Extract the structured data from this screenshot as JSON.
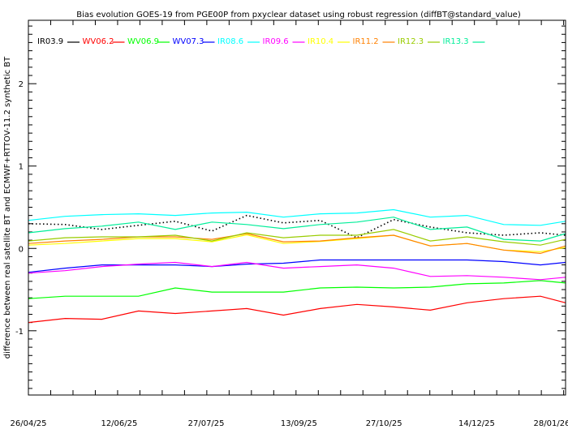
{
  "chart_data": {
    "type": "line",
    "title": "Bias evolution GOES-19 from PGE00P from pxyclear dataset using robust regression (diffBT@standard_value)",
    "xlabel": "",
    "ylabel": "difference between real satellite BT and ECMWF+RTTOV-11.2 synthetic BT",
    "xlim_days": [
      0,
      278
    ],
    "ylim": [
      -1.78,
      2.77
    ],
    "grid": false,
    "legend_placement": "top-left inside",
    "x_ticks": [
      {
        "day": 0,
        "label": "26/04/25"
      },
      {
        "day": 47,
        "label": "12/06/25"
      },
      {
        "day": 92,
        "label": "27/07/25"
      },
      {
        "day": 140,
        "label": "13/09/25"
      },
      {
        "day": 184,
        "label": "27/10/25"
      },
      {
        "day": 232,
        "label": "14/12/25"
      },
      {
        "day": 277,
        "label": "28/01/26"
      }
    ],
    "y_ticks": [
      {
        "value": -1,
        "label": "-1"
      },
      {
        "value": 0,
        "label": "0"
      },
      {
        "value": 1,
        "label": "1"
      },
      {
        "value": 2,
        "label": "2"
      }
    ],
    "x_days": [
      0,
      19,
      38,
      57,
      76,
      95,
      113,
      132,
      151,
      170,
      189,
      208,
      227,
      246,
      265,
      278
    ],
    "series": [
      {
        "name": "IR03.9",
        "color": "#000000",
        "dotted": true,
        "values": [
          0.3,
          0.29,
          0.23,
          0.28,
          0.33,
          0.21,
          0.4,
          0.31,
          0.34,
          0.13,
          0.35,
          0.26,
          0.19,
          0.16,
          0.19,
          0.16
        ]
      },
      {
        "name": "WV06.2",
        "color": "#ff0000",
        "values": [
          -0.9,
          -0.85,
          -0.86,
          -0.76,
          -0.79,
          -0.76,
          -0.73,
          -0.81,
          -0.73,
          -0.68,
          -0.71,
          -0.75,
          -0.66,
          -0.61,
          -0.58,
          -0.66
        ]
      },
      {
        "name": "WV06.9",
        "color": "#00ff00",
        "values": [
          -0.61,
          -0.58,
          -0.58,
          -0.58,
          -0.48,
          -0.53,
          -0.53,
          -0.53,
          -0.48,
          -0.47,
          -0.48,
          -0.47,
          -0.43,
          -0.42,
          -0.39,
          -0.42
        ]
      },
      {
        "name": "WV07.3",
        "color": "#0000ff",
        "values": [
          -0.29,
          -0.24,
          -0.2,
          -0.2,
          -0.2,
          -0.22,
          -0.19,
          -0.18,
          -0.14,
          -0.14,
          -0.14,
          -0.14,
          -0.14,
          -0.16,
          -0.2,
          -0.17
        ]
      },
      {
        "name": "IR08.6",
        "color": "#00ffff",
        "values": [
          0.34,
          0.39,
          0.41,
          0.42,
          0.4,
          0.43,
          0.44,
          0.38,
          0.42,
          0.43,
          0.47,
          0.38,
          0.4,
          0.29,
          0.28,
          0.33
        ]
      },
      {
        "name": "IR09.6",
        "color": "#ff00ff",
        "values": [
          -0.3,
          -0.27,
          -0.22,
          -0.19,
          -0.17,
          -0.22,
          -0.17,
          -0.24,
          -0.22,
          -0.2,
          -0.24,
          -0.34,
          -0.33,
          -0.35,
          -0.38,
          -0.35
        ]
      },
      {
        "name": "IR10.4",
        "color": "#ffff00",
        "values": [
          0.04,
          0.06,
          0.09,
          0.12,
          0.12,
          0.08,
          0.165,
          0.06,
          0.085,
          0.12,
          0.16,
          0.03,
          0.06,
          -0.02,
          -0.04,
          0.01
        ]
      },
      {
        "name": "IR11.2",
        "color": "#ff8000",
        "values": [
          0.06,
          0.09,
          0.11,
          0.14,
          0.14,
          0.11,
          0.18,
          0.08,
          0.09,
          0.13,
          0.16,
          0.03,
          0.06,
          -0.02,
          -0.06,
          0.03
        ]
      },
      {
        "name": "IR12.3",
        "color": "#99cc00",
        "values": [
          0.09,
          0.13,
          0.14,
          0.14,
          0.16,
          0.09,
          0.19,
          0.13,
          0.16,
          0.16,
          0.23,
          0.09,
          0.14,
          0.08,
          0.04,
          0.11
        ]
      },
      {
        "name": "IR13.3",
        "color": "#00ee99",
        "values": [
          0.19,
          0.24,
          0.27,
          0.32,
          0.23,
          0.32,
          0.29,
          0.24,
          0.29,
          0.32,
          0.38,
          0.23,
          0.26,
          0.11,
          0.09,
          0.18
        ]
      }
    ]
  }
}
